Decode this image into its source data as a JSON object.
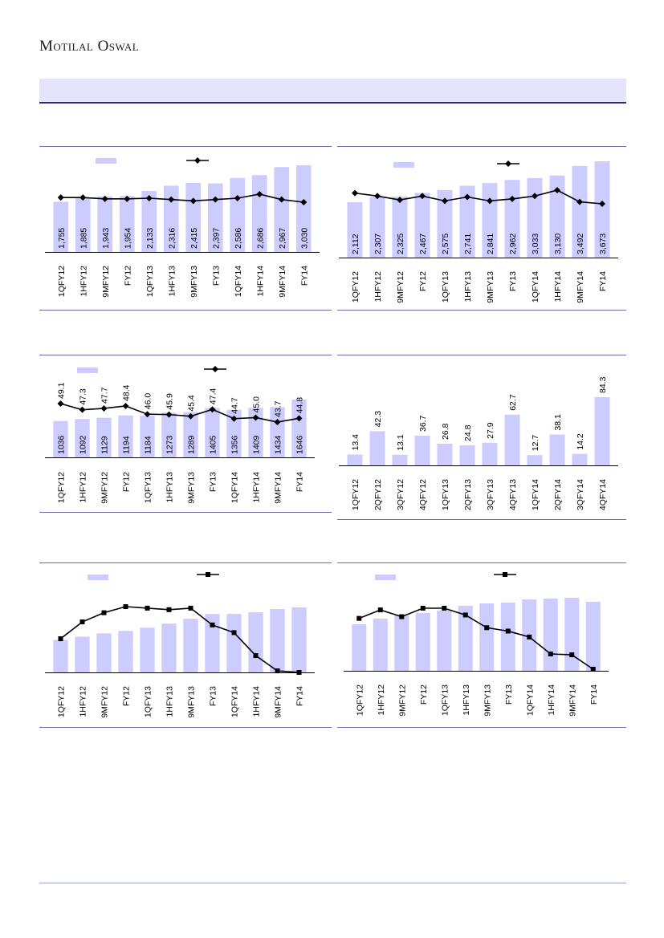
{
  "brand": {
    "name": "Motilal Oswal"
  },
  "colors": {
    "bar": "#ccccff",
    "line": "#000000",
    "frame": "#6b6ba8",
    "banner": "#e4e4fc"
  },
  "chart_data": [
    {
      "id": "c1",
      "type": "bar",
      "categories": [
        "1QFY12",
        "1HFY12",
        "9MFY12",
        "FY12",
        "1QFY13",
        "1HFY13",
        "9MFY13",
        "FY13",
        "1QFY14",
        "1HFY14",
        "9MFY14",
        "FY14"
      ],
      "series": [
        {
          "type": "bar",
          "values": [
            1755,
            1885,
            1943,
            1954,
            2133,
            2316,
            2415,
            2397,
            2586,
            2686,
            2967,
            3030
          ],
          "labels": [
            "1,755",
            "1,885",
            "1,943",
            "1,954",
            "2,133",
            "2,316",
            "2,415",
            "2,397",
            "2,586",
            "2,686",
            "2,967",
            "3,030"
          ]
        },
        {
          "type": "line",
          "marker": "diamond",
          "values": [
            0.45,
            0.45,
            0.47,
            0.47,
            0.46,
            0.48,
            0.5,
            0.48,
            0.46,
            0.4,
            0.48,
            0.52
          ]
        }
      ],
      "legend": "top"
    },
    {
      "id": "c2",
      "type": "bar",
      "categories": [
        "1QFY12",
        "1HFY12",
        "9MFY12",
        "FY12",
        "1QFY13",
        "1HFY13",
        "9MFY13",
        "FY13",
        "1QFY14",
        "1HFY14",
        "9MFY14",
        "FY14"
      ],
      "series": [
        {
          "type": "bar",
          "values": [
            2112,
            2307,
            2325,
            2467,
            2575,
            2741,
            2841,
            2962,
            3033,
            3130,
            3492,
            3673
          ],
          "labels": [
            "2,112",
            "2,307",
            "2,325",
            "2,467",
            "2,575",
            "2,741",
            "2,841",
            "2,962",
            "3,033",
            "3,130",
            "3,492",
            "3,673"
          ]
        },
        {
          "type": "line",
          "marker": "diamond",
          "values": [
            0.42,
            0.45,
            0.49,
            0.45,
            0.5,
            0.46,
            0.5,
            0.48,
            0.45,
            0.39,
            0.51,
            0.53
          ]
        }
      ],
      "legend": "top"
    },
    {
      "id": "c3",
      "type": "bar",
      "categories": [
        "1QFY12",
        "1HFY12",
        "9MFY12",
        "FY12",
        "1QFY13",
        "1HFY13",
        "9MFY13",
        "FY13",
        "1QFY14",
        "1HFY14",
        "9MFY14",
        "FY14"
      ],
      "series": [
        {
          "type": "bar",
          "values": [
            1036,
            1092,
            1129,
            1194,
            1184,
            1273,
            1289,
            1405,
            1356,
            1409,
            1434,
            1646
          ],
          "labels": [
            "1036",
            "1092",
            "1129",
            "1194",
            "1184",
            "1273",
            "1289",
            "1405",
            "1356",
            "1409",
            "1434",
            "1646"
          ]
        },
        {
          "type": "line",
          "marker": "diamond",
          "values": [
            49.1,
            47.3,
            47.7,
            48.4,
            46.0,
            45.9,
            45.4,
            47.4,
            44.7,
            45.0,
            43.7,
            44.8
          ],
          "labels": [
            "49.1",
            "47.3",
            "47.7",
            "48.4",
            "46.0",
            "45.9",
            "45.4",
            "47.4",
            "44.7",
            "45.0",
            "43.7",
            "44.8"
          ]
        }
      ],
      "legend": "top"
    },
    {
      "id": "c4",
      "type": "bar",
      "categories": [
        "1QFY12",
        "2QFY12",
        "3QFY12",
        "4QFY12",
        "1QFY13",
        "2QFY13",
        "3QFY13",
        "4QFY13",
        "1QFY14",
        "2QFY14",
        "3QFY14",
        "4QFY14"
      ],
      "series": [
        {
          "type": "bar",
          "values": [
            13.4,
            42.3,
            13.1,
            36.7,
            26.8,
            24.8,
            27.9,
            62.7,
            12.7,
            38.1,
            14.2,
            84.3
          ],
          "labels": [
            "13.4",
            "42.3",
            "13.1",
            "36.7",
            "26.8",
            "24.8",
            "27.9",
            "62.7",
            "12.7",
            "38.1",
            "14.2",
            "84.3"
          ]
        }
      ]
    },
    {
      "id": "c5",
      "type": "bar",
      "categories": [
        "1QFY12",
        "1HFY12",
        "9MFY12",
        "FY12",
        "1QFY13",
        "1HFY13",
        "9MFY13",
        "FY13",
        "1QFY14",
        "1HFY14",
        "9MFY14",
        "FY14"
      ],
      "series": [
        {
          "type": "bar",
          "values": [
            40,
            44,
            48,
            51,
            55,
            60,
            66,
            72,
            72,
            74,
            78,
            80
          ]
        },
        {
          "type": "line",
          "marker": "square",
          "values": [
            61,
            72,
            78,
            82,
            81,
            80,
            81,
            70,
            65,
            50,
            40,
            39
          ]
        }
      ],
      "legend": "top"
    },
    {
      "id": "c6",
      "type": "bar",
      "categories": [
        "1QFY12",
        "1HFY12",
        "9MFY12",
        "FY12",
        "1QFY13",
        "1HFY13",
        "9MFY13",
        "FY13",
        "1QFY14",
        "1HFY14",
        "9MFY14",
        "FY14"
      ],
      "series": [
        {
          "type": "bar",
          "values": [
            58,
            65,
            69,
            72,
            75,
            81,
            84,
            85,
            89,
            90,
            91,
            86
          ]
        },
        {
          "type": "line",
          "marker": "square",
          "values": [
            64,
            74,
            66,
            76,
            76,
            68,
            53,
            49,
            42,
            22,
            21,
            4
          ]
        }
      ],
      "legend": "top"
    }
  ]
}
